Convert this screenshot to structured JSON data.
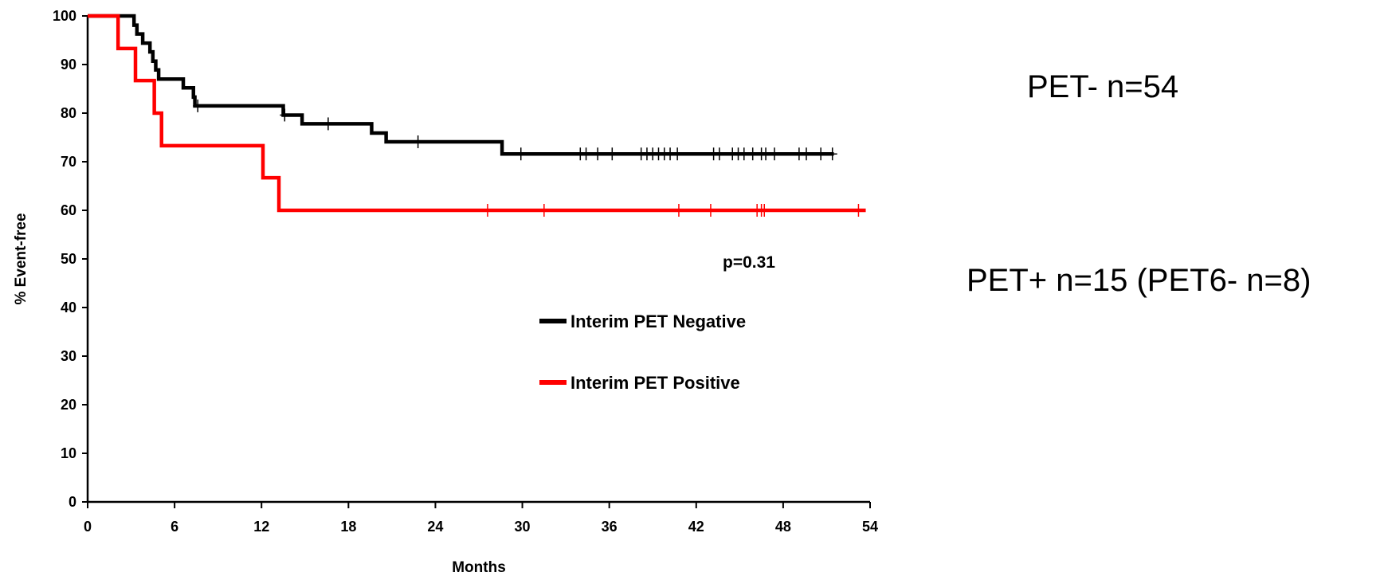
{
  "chart_data": {
    "type": "line",
    "subtype": "kaplan-meier",
    "title": "",
    "xlabel": "Months",
    "ylabel": "% Event-free",
    "xlim": [
      0,
      54
    ],
    "ylim": [
      0,
      100
    ],
    "xticks": [
      0,
      6,
      12,
      18,
      24,
      30,
      36,
      42,
      48,
      54
    ],
    "yticks": [
      0,
      10,
      20,
      30,
      40,
      50,
      60,
      70,
      80,
      90,
      100
    ],
    "grid": false,
    "legend_position": "lower-middle",
    "series": [
      {
        "name": "Interim PET Negative",
        "color": "#000000",
        "steps": [
          [
            0,
            100
          ],
          [
            3.2,
            98.1
          ],
          [
            3.4,
            96.3
          ],
          [
            3.8,
            94.4
          ],
          [
            4.3,
            92.6
          ],
          [
            4.5,
            90.7
          ],
          [
            4.7,
            88.9
          ],
          [
            4.9,
            87.0
          ],
          [
            6.6,
            85.2
          ],
          [
            7.3,
            83.3
          ],
          [
            7.4,
            81.5
          ],
          [
            13.5,
            79.6
          ],
          [
            14.8,
            77.8
          ],
          [
            19.6,
            75.9
          ],
          [
            20.6,
            74.1
          ],
          [
            28.6,
            71.6
          ],
          [
            51.5,
            71.6
          ]
        ],
        "censored": [
          7.6,
          13.6,
          16.6,
          22.8,
          29.9,
          34.0,
          34.4,
          35.2,
          36.2,
          38.2,
          38.6,
          39.0,
          39.4,
          39.8,
          40.2,
          40.7,
          43.2,
          43.6,
          44.5,
          44.9,
          45.3,
          45.9,
          46.5,
          46.8,
          47.4,
          49.1,
          49.6,
          50.6,
          51.4
        ]
      },
      {
        "name": "Interim PET Positive",
        "color": "#ff0000",
        "steps": [
          [
            0,
            100
          ],
          [
            2.1,
            93.3
          ],
          [
            3.3,
            86.7
          ],
          [
            4.6,
            80.0
          ],
          [
            5.1,
            73.3
          ],
          [
            12.1,
            66.7
          ],
          [
            13.2,
            60.0
          ],
          [
            53.7,
            60.0
          ]
        ],
        "censored": [
          27.6,
          31.5,
          40.8,
          43.0,
          46.2,
          46.5,
          46.7,
          53.2
        ]
      }
    ],
    "annotations": [
      "p=0.31"
    ]
  },
  "side_text": {
    "pet_negative": "PET- n=54",
    "pet_positive": "PET+ n=15 (PET6- n=8)"
  }
}
